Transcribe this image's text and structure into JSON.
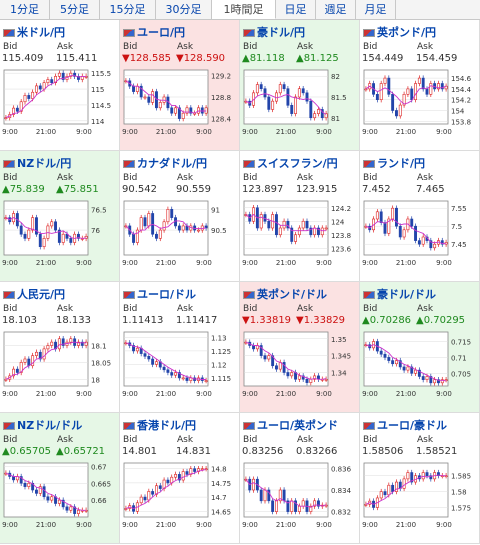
{
  "tabs": [
    {
      "label": "1分足",
      "active": false
    },
    {
      "label": "5分足",
      "active": false
    },
    {
      "label": "15分足",
      "active": false
    },
    {
      "label": "30分足",
      "active": false
    },
    {
      "label": "1時間足",
      "active": true
    },
    {
      "label": "日足",
      "active": false
    },
    {
      "label": "週足",
      "active": false
    },
    {
      "label": "月足",
      "active": false
    }
  ],
  "labels": {
    "bid": "Bid",
    "ask": "Ask"
  },
  "colors": {
    "up_bg": "#e6f7e6",
    "down_bg": "#fbe2e2",
    "up_text": "#1f8a1f",
    "down_text": "#cc1111",
    "link": "#0645ad",
    "ma_line": "#cc33cc",
    "candle_up": "#dd2222",
    "candle_down": "#2244aa"
  },
  "pairs": [
    {
      "name": "米ドル/円",
      "icon": "flag-us-icon",
      "dir": "flat",
      "bid": "115.409",
      "ask": "115.411",
      "yticks": [
        "115.5",
        "115",
        "114.5",
        "114"
      ],
      "ymin": 113.9,
      "ymax": 115.6,
      "trend": [
        114.1,
        114.2,
        114.4,
        114.3,
        114.6,
        114.8,
        114.7,
        114.9,
        115.1,
        115.0,
        115.2,
        115.3,
        115.2,
        115.4,
        115.5,
        115.3,
        115.4,
        115.5,
        115.4,
        115.3,
        115.4,
        115.4
      ],
      "xticks": [
        "9:00",
        "21:00",
        "9:00"
      ]
    },
    {
      "name": "ユーロ/円",
      "icon": "flag-eu-icon",
      "dir": "down",
      "bid": "▼128.585",
      "ask": "▼128.590",
      "yticks": [
        "129.2",
        "128.8",
        "128.4",
        "128"
      ],
      "ymin": 128.3,
      "ymax": 129.3,
      "trend": [
        129.1,
        129.0,
        128.9,
        129.0,
        128.8,
        128.8,
        128.7,
        128.9,
        128.6,
        128.7,
        128.8,
        128.6,
        128.5,
        128.6,
        128.4,
        128.5,
        128.6,
        128.5,
        128.5,
        128.6,
        128.5,
        128.6
      ],
      "xticks": [
        "9:00",
        "21:00",
        "9:00"
      ]
    },
    {
      "name": "豪ドル/円",
      "icon": "flag-au-icon",
      "dir": "up",
      "bid": "▲81.118",
      "ask": "▲81.125",
      "yticks": [
        "82",
        "81.5",
        "81"
      ],
      "ymin": 80.85,
      "ymax": 82.15,
      "trend": [
        81.4,
        81.3,
        81.6,
        81.8,
        81.7,
        81.5,
        81.2,
        81.4,
        81.6,
        81.8,
        81.7,
        81.3,
        81.1,
        81.5,
        81.7,
        81.6,
        81.4,
        81.0,
        81.1,
        81.2,
        81.0,
        81.1
      ],
      "xticks": [
        "9:00",
        "21:00",
        "9:00"
      ]
    },
    {
      "name": "英ポンド/円",
      "icon": "flag-gb-icon",
      "dir": "flat",
      "bid": "154.449",
      "ask": "154.459",
      "yticks": [
        "154.6",
        "154.4",
        "154.2",
        "154",
        "153.8"
      ],
      "ymin": 153.75,
      "ymax": 154.75,
      "trend": [
        154.4,
        154.5,
        154.3,
        154.2,
        154.5,
        154.6,
        154.3,
        154.0,
        153.9,
        154.1,
        154.3,
        154.4,
        154.2,
        154.5,
        154.6,
        154.4,
        154.3,
        154.5,
        154.4,
        154.5,
        154.4,
        154.45
      ],
      "xticks": [
        "9:00",
        "21:00",
        "9:00"
      ]
    },
    {
      "name": "NZドル/円",
      "icon": "flag-nz-icon",
      "dir": "up",
      "bid": "▲75.839",
      "ask": "▲75.851",
      "yticks": [
        "76.5",
        "76"
      ],
      "ymin": 75.4,
      "ymax": 76.7,
      "trend": [
        76.3,
        76.2,
        76.4,
        76.1,
        75.9,
        75.8,
        76.0,
        76.3,
        75.9,
        75.6,
        75.8,
        76.1,
        76.2,
        76.0,
        75.7,
        75.9,
        75.8,
        75.7,
        75.9,
        75.8,
        75.8,
        75.85
      ],
      "xticks": [
        "9:00",
        "21:00",
        "9:00"
      ]
    },
    {
      "name": "カナダドル/円",
      "icon": "flag-ca-icon",
      "dir": "flat",
      "bid": "90.542",
      "ask": "90.559",
      "yticks": [
        "91",
        "90.5"
      ],
      "ymin": 89.9,
      "ymax": 91.2,
      "trend": [
        90.6,
        90.4,
        90.2,
        90.5,
        90.8,
        90.6,
        90.9,
        90.4,
        90.3,
        90.5,
        90.7,
        91.0,
        90.8,
        90.6,
        90.5,
        90.6,
        90.5,
        90.6,
        90.5,
        90.5,
        90.6,
        90.55
      ],
      "xticks": [
        "9:00",
        "21:00",
        "9:00"
      ]
    },
    {
      "name": "スイスフラン/円",
      "icon": "flag-ch-icon",
      "dir": "flat",
      "bid": "123.897",
      "ask": "123.915",
      "yticks": [
        "124.2",
        "124",
        "123.8",
        "123.6"
      ],
      "ymin": 123.5,
      "ymax": 124.3,
      "trend": [
        124.1,
        124.0,
        124.2,
        123.9,
        124.1,
        124.0,
        123.9,
        124.1,
        123.8,
        123.9,
        124.0,
        123.9,
        123.7,
        123.8,
        123.9,
        124.0,
        123.9,
        123.8,
        123.9,
        123.8,
        123.9,
        123.9
      ],
      "xticks": [
        "9:00",
        "21:00",
        "9:00"
      ]
    },
    {
      "name": "ランド/円",
      "icon": "flag-za-icon",
      "dir": "flat",
      "bid": "7.452",
      "ask": "7.465",
      "yticks": [
        "7.55",
        "7.5",
        "7.45"
      ],
      "ymin": 7.42,
      "ymax": 7.57,
      "trend": [
        7.5,
        7.49,
        7.52,
        7.54,
        7.51,
        7.48,
        7.52,
        7.55,
        7.5,
        7.47,
        7.49,
        7.52,
        7.5,
        7.46,
        7.45,
        7.47,
        7.46,
        7.44,
        7.45,
        7.46,
        7.45,
        7.455
      ],
      "xticks": [
        "9:00",
        "21:00",
        "9:00"
      ]
    },
    {
      "name": "人民元/円",
      "icon": "flag-cn-icon",
      "dir": "flat",
      "bid": "18.103",
      "ask": "18.133",
      "yticks": [
        "18.1",
        "18.05",
        "18"
      ],
      "ymin": 17.98,
      "ymax": 18.14,
      "trend": [
        18.0,
        18.01,
        18.03,
        18.02,
        18.05,
        18.06,
        18.04,
        18.07,
        18.08,
        18.06,
        18.09,
        18.1,
        18.11,
        18.09,
        18.12,
        18.1,
        18.11,
        18.12,
        18.1,
        18.11,
        18.1,
        18.11
      ],
      "xticks": [
        "9:00",
        "21:00",
        "9:00"
      ]
    },
    {
      "name": "ユーロ/ドル",
      "icon": "flag-eu-us-icon",
      "dir": "flat",
      "bid": "1.11413",
      "ask": "1.11417",
      "yticks": [
        "1.13",
        "1.125",
        "1.12",
        "1.115"
      ],
      "ymin": 1.112,
      "ymax": 1.132,
      "trend": [
        1.128,
        1.127,
        1.125,
        1.126,
        1.124,
        1.123,
        1.122,
        1.12,
        1.121,
        1.119,
        1.118,
        1.117,
        1.116,
        1.117,
        1.115,
        1.115,
        1.114,
        1.115,
        1.114,
        1.115,
        1.114,
        1.114
      ],
      "xticks": [
        "9:00",
        "21:00",
        "9:00"
      ]
    },
    {
      "name": "英ポンド/ドル",
      "icon": "flag-gb-us-icon",
      "dir": "down",
      "bid": "▼1.33819",
      "ask": "▼1.33829",
      "yticks": [
        "1.35",
        "1.345",
        "1.34"
      ],
      "ymin": 1.336,
      "ymax": 1.352,
      "trend": [
        1.349,
        1.348,
        1.347,
        1.348,
        1.345,
        1.344,
        1.345,
        1.342,
        1.341,
        1.343,
        1.34,
        1.339,
        1.34,
        1.338,
        1.339,
        1.338,
        1.337,
        1.338,
        1.339,
        1.338,
        1.338,
        1.338
      ],
      "xticks": [
        "9:00",
        "21:00",
        "9:00"
      ]
    },
    {
      "name": "豪ドル/ドル",
      "icon": "flag-au-us-icon",
      "dir": "up",
      "bid": "▲0.70286",
      "ask": "▲0.70295",
      "yticks": [
        "0.715",
        "0.71",
        "0.705"
      ],
      "ymin": 0.701,
      "ymax": 0.718,
      "trend": [
        0.714,
        0.713,
        0.715,
        0.712,
        0.711,
        0.71,
        0.709,
        0.708,
        0.709,
        0.707,
        0.706,
        0.707,
        0.705,
        0.706,
        0.704,
        0.703,
        0.704,
        0.702,
        0.703,
        0.702,
        0.703,
        0.703
      ],
      "xticks": [
        "9:00",
        "21:00",
        "9:00"
      ]
    },
    {
      "name": "NZドル/ドル",
      "icon": "flag-nz-us-icon",
      "dir": "up",
      "bid": "▲0.65705",
      "ask": "▲0.65721",
      "yticks": [
        "0.67",
        "0.665",
        "0.66"
      ],
      "ymin": 0.655,
      "ymax": 0.671,
      "trend": [
        0.668,
        0.667,
        0.666,
        0.667,
        0.665,
        0.664,
        0.665,
        0.663,
        0.662,
        0.664,
        0.661,
        0.66,
        0.661,
        0.659,
        0.66,
        0.658,
        0.657,
        0.658,
        0.656,
        0.657,
        0.657,
        0.657
      ],
      "xticks": [
        "9:00",
        "21:00",
        "9:00"
      ]
    },
    {
      "name": "香港ドル/円",
      "icon": "flag-hk-icon",
      "dir": "flat",
      "bid": "14.801",
      "ask": "14.831",
      "yticks": [
        "14.8",
        "14.75",
        "14.7",
        "14.65"
      ],
      "ymin": 14.63,
      "ymax": 14.82,
      "trend": [
        14.66,
        14.67,
        14.65,
        14.68,
        14.7,
        14.69,
        14.72,
        14.71,
        14.74,
        14.73,
        14.76,
        14.75,
        14.77,
        14.78,
        14.76,
        14.79,
        14.78,
        14.8,
        14.79,
        14.8,
        14.8,
        14.8
      ],
      "xticks": [
        "9:00",
        "21:00",
        "9:00"
      ]
    },
    {
      "name": "ユーロ/英ポンド",
      "icon": "flag-eu-gb-icon",
      "dir": "flat",
      "bid": "0.83256",
      "ask": "0.83266",
      "yticks": [
        "0.836",
        "0.834",
        "0.832"
      ],
      "ymin": 0.8315,
      "ymax": 0.8365,
      "trend": [
        0.835,
        0.834,
        0.835,
        0.834,
        0.833,
        0.834,
        0.833,
        0.832,
        0.833,
        0.834,
        0.833,
        0.832,
        0.833,
        0.832,
        0.8325,
        0.833,
        0.832,
        0.8325,
        0.833,
        0.8325,
        0.8326,
        0.8326
      ],
      "xticks": [
        "9:00",
        "21:00",
        "9:00"
      ]
    },
    {
      "name": "ユーロ/豪ドル",
      "icon": "flag-eu-au-icon",
      "dir": "flat",
      "bid": "1.58506",
      "ask": "1.58521",
      "yticks": [
        "1.585",
        "1.58",
        "1.575"
      ],
      "ymin": 1.572,
      "ymax": 1.589,
      "trend": [
        1.576,
        1.577,
        1.575,
        1.578,
        1.58,
        1.579,
        1.582,
        1.58,
        1.583,
        1.581,
        1.584,
        1.586,
        1.583,
        1.585,
        1.584,
        1.586,
        1.585,
        1.584,
        1.586,
        1.585,
        1.585,
        1.585
      ],
      "xticks": [
        "9:00",
        "21:00",
        "9:00"
      ]
    }
  ]
}
